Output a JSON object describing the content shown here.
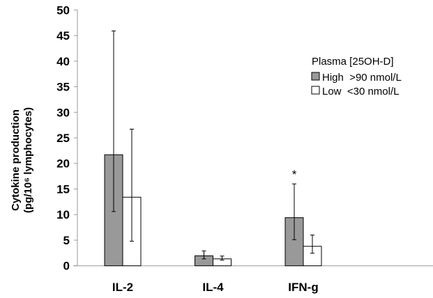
{
  "chart_data": {
    "type": "bar",
    "title": "",
    "xlabel": "",
    "ylabel": "Cytokine production",
    "ylabel_line2": "(pg/10⁶ lymphocytes)",
    "ylim": [
      0,
      50
    ],
    "yticks": [
      "0",
      "5",
      "10",
      "15",
      "20",
      "25",
      "30",
      "35",
      "40",
      "45",
      "50"
    ],
    "categories": [
      "IL-2",
      "IL-4",
      "IFN-g"
    ],
    "legend_title": "Plasma [25OH-D]",
    "legend_position": "right",
    "series": [
      {
        "name": "High  >90 nmol/L",
        "color": "#999999",
        "values": [
          21.7,
          1.95,
          9.4
        ],
        "err_low": [
          10.6,
          1.35,
          5.1
        ],
        "err_high": [
          45.9,
          2.9,
          16.0
        ]
      },
      {
        "name": "Low  <30 nmol/L",
        "color": "#ffffff",
        "values": [
          13.4,
          1.35,
          3.8
        ],
        "err_low": [
          4.8,
          1.1,
          2.45
        ],
        "err_high": [
          26.7,
          1.9,
          6.0
        ]
      }
    ],
    "annotations": [
      {
        "category": "IFN-g",
        "series": "High  >90 nmol/L",
        "text": "*"
      }
    ]
  }
}
